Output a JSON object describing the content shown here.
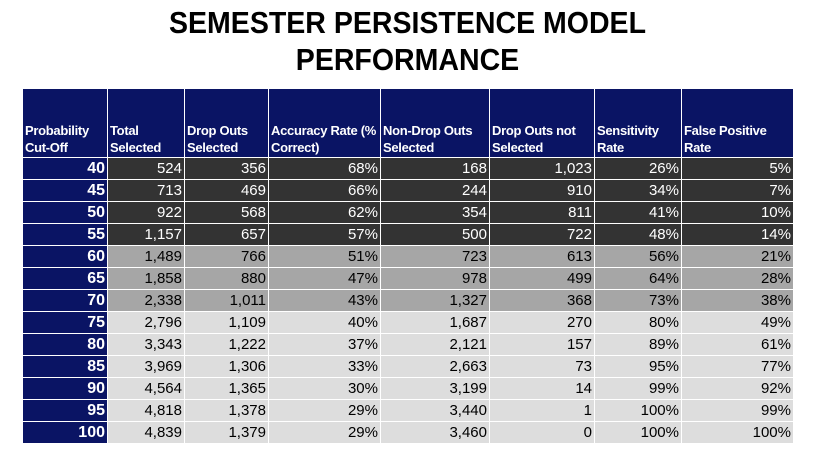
{
  "title": {
    "line1": "SEMESTER PERSISTENCE MODEL",
    "line2": "PERFORMANCE"
  },
  "table": {
    "headers": [
      "Probability Cut-Off",
      "Total Selected",
      "Drop Outs Selected",
      "Accuracy Rate (% Correct)",
      "Non-Drop Outs Selected",
      "Drop Outs not Selected",
      "Sensitivity Rate",
      "False Positive Rate"
    ],
    "colors": {
      "header_bg": "#0a1464",
      "band_dark": "#333333",
      "band_mid": "#a6a6a6",
      "band_light": "#dddddd"
    },
    "rows": [
      {
        "band": "dark",
        "cells": [
          "40",
          "524",
          "356",
          "68%",
          "168",
          "1,023",
          "26%",
          "5%"
        ]
      },
      {
        "band": "dark",
        "cells": [
          "45",
          "713",
          "469",
          "66%",
          "244",
          "910",
          "34%",
          "7%"
        ]
      },
      {
        "band": "dark",
        "cells": [
          "50",
          "922",
          "568",
          "62%",
          "354",
          "811",
          "41%",
          "10%"
        ]
      },
      {
        "band": "dark",
        "cells": [
          "55",
          "1,157",
          "657",
          "57%",
          "500",
          "722",
          "48%",
          "14%"
        ]
      },
      {
        "band": "mid",
        "cells": [
          "60",
          "1,489",
          "766",
          "51%",
          "723",
          "613",
          "56%",
          "21%"
        ]
      },
      {
        "band": "mid",
        "cells": [
          "65",
          "1,858",
          "880",
          "47%",
          "978",
          "499",
          "64%",
          "28%"
        ]
      },
      {
        "band": "mid",
        "cells": [
          "70",
          "2,338",
          "1,011",
          "43%",
          "1,327",
          "368",
          "73%",
          "38%"
        ]
      },
      {
        "band": "light",
        "cells": [
          "75",
          "2,796",
          "1,109",
          "40%",
          "1,687",
          "270",
          "80%",
          "49%"
        ]
      },
      {
        "band": "light",
        "cells": [
          "80",
          "3,343",
          "1,222",
          "37%",
          "2,121",
          "157",
          "89%",
          "61%"
        ]
      },
      {
        "band": "light",
        "cells": [
          "85",
          "3,969",
          "1,306",
          "33%",
          "2,663",
          "73",
          "95%",
          "77%"
        ]
      },
      {
        "band": "light",
        "cells": [
          "90",
          "4,564",
          "1,365",
          "30%",
          "3,199",
          "14",
          "99%",
          "92%"
        ]
      },
      {
        "band": "light",
        "cells": [
          "95",
          "4,818",
          "1,378",
          "29%",
          "3,440",
          "1",
          "100%",
          "99%"
        ]
      },
      {
        "band": "light",
        "cells": [
          "100",
          "4,839",
          "1,379",
          "29%",
          "3,460",
          "0",
          "100%",
          "100%"
        ]
      }
    ]
  }
}
